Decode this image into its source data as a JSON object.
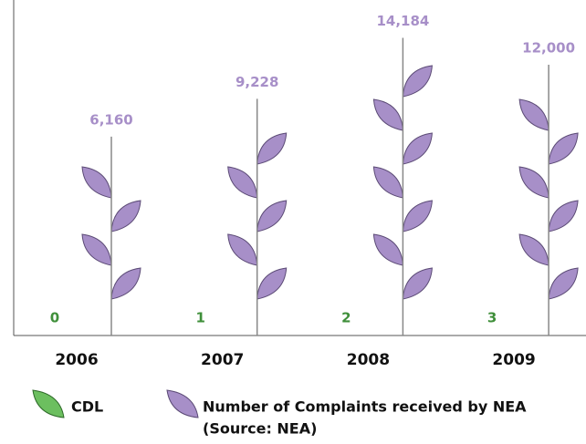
{
  "chart_data": {
    "type": "pictograph",
    "categories": [
      "2006",
      "2007",
      "2008",
      "2009"
    ],
    "series": [
      {
        "name": "CDL",
        "color": "#6cbf5f",
        "label_color": "#3f8f3a",
        "values": [
          0,
          1,
          2,
          3
        ]
      },
      {
        "name": "Number of Complaints received by NEA",
        "source": "(Source: NEA)",
        "color": "#a78fc8",
        "label_color": "#a78fc8",
        "values": [
          6160,
          9228,
          14184,
          12000
        ],
        "value_labels": [
          "6,160",
          "9,228",
          "14,184",
          "12,000"
        ]
      }
    ],
    "ylim": [
      -10000,
      16000
    ]
  }
}
